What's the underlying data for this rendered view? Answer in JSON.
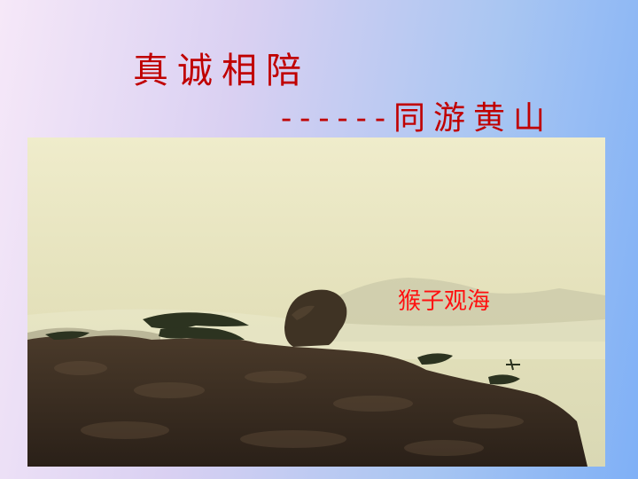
{
  "slide": {
    "title": "真诚相陪",
    "subtitle": "------同游黄山",
    "photo": {
      "caption": "猴子观海"
    }
  }
}
